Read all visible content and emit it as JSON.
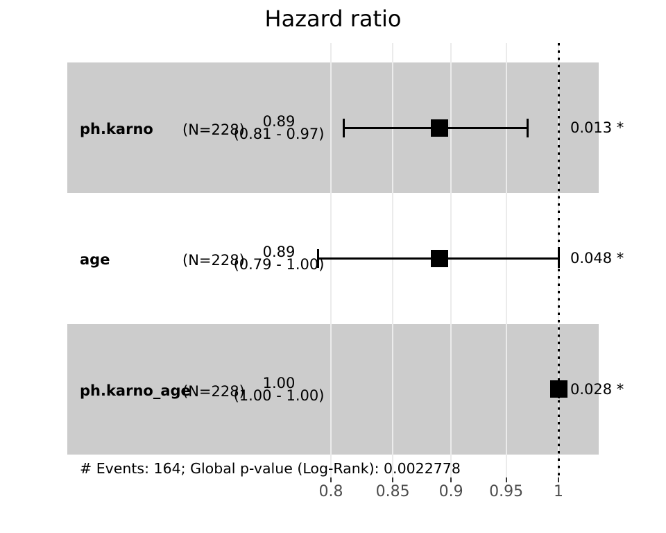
{
  "title": "Hazard ratio",
  "footer": "# Events: 164; Global p-value (Log-Rank): 0.0022778",
  "rows": [
    {
      "name": "ph.karno",
      "n_label": "(N=228)",
      "estimate": "0.89",
      "ci_label": "(0.81 - 0.97)",
      "p_label": "0.013 *",
      "hr": 0.89,
      "ci_low": 0.81,
      "ci_high": 0.97,
      "shaded": true
    },
    {
      "name": "age",
      "n_label": "(N=228)",
      "estimate": "0.89",
      "ci_label": "(0.79 - 1.00)",
      "p_label": "0.048 *",
      "hr": 0.89,
      "ci_low": 0.79,
      "ci_high": 1.0,
      "shaded": false
    },
    {
      "name": "ph.karno_age",
      "n_label": "(N=228)",
      "estimate": "1.00",
      "ci_label": "(1.00 - 1.00)",
      "p_label": "0.028 *",
      "hr": 1.0,
      "ci_low": 1.0,
      "ci_high": 1.0,
      "shaded": true
    }
  ],
  "axis": {
    "tick_labels": [
      "0.8",
      "0.85",
      "0.9",
      "0.95",
      "1"
    ],
    "tick_values": [
      0.8,
      0.85,
      0.9,
      0.95,
      1
    ],
    "scale": "log",
    "reference": 1
  },
  "colors": {
    "band": "#cccccc",
    "grid": "#ebebeb",
    "marker": "#000000",
    "tick_text": "#4d4d4d",
    "ref_line": "#000000"
  },
  "chart_data": {
    "type": "forest",
    "title": "Hazard ratio",
    "variables": [
      "ph.karno",
      "age",
      "ph.karno_age"
    ],
    "n": [
      228,
      228,
      228
    ],
    "hazard_ratios": [
      0.89,
      0.89,
      1.0
    ],
    "ci_low": [
      0.81,
      0.79,
      1.0
    ],
    "ci_high": [
      0.97,
      1.0,
      1.0
    ],
    "ci_labels": [
      "(0.81 - 0.97)",
      "(0.79 - 1.00)",
      "(1.00 - 1.00)"
    ],
    "p_values": [
      "0.013 *",
      "0.048 *",
      "0.028 *"
    ],
    "significance": [
      "*",
      "*",
      "*"
    ],
    "x_ticks": [
      0.8,
      0.85,
      0.9,
      0.95,
      1
    ],
    "x_scale": "log",
    "reference_line": 1,
    "marker": "square",
    "shaded_rows": [
      0,
      2
    ],
    "grid": true,
    "legend": false,
    "footer": "# Events: 164; Global p-value (Log-Rank): 0.0022778"
  }
}
